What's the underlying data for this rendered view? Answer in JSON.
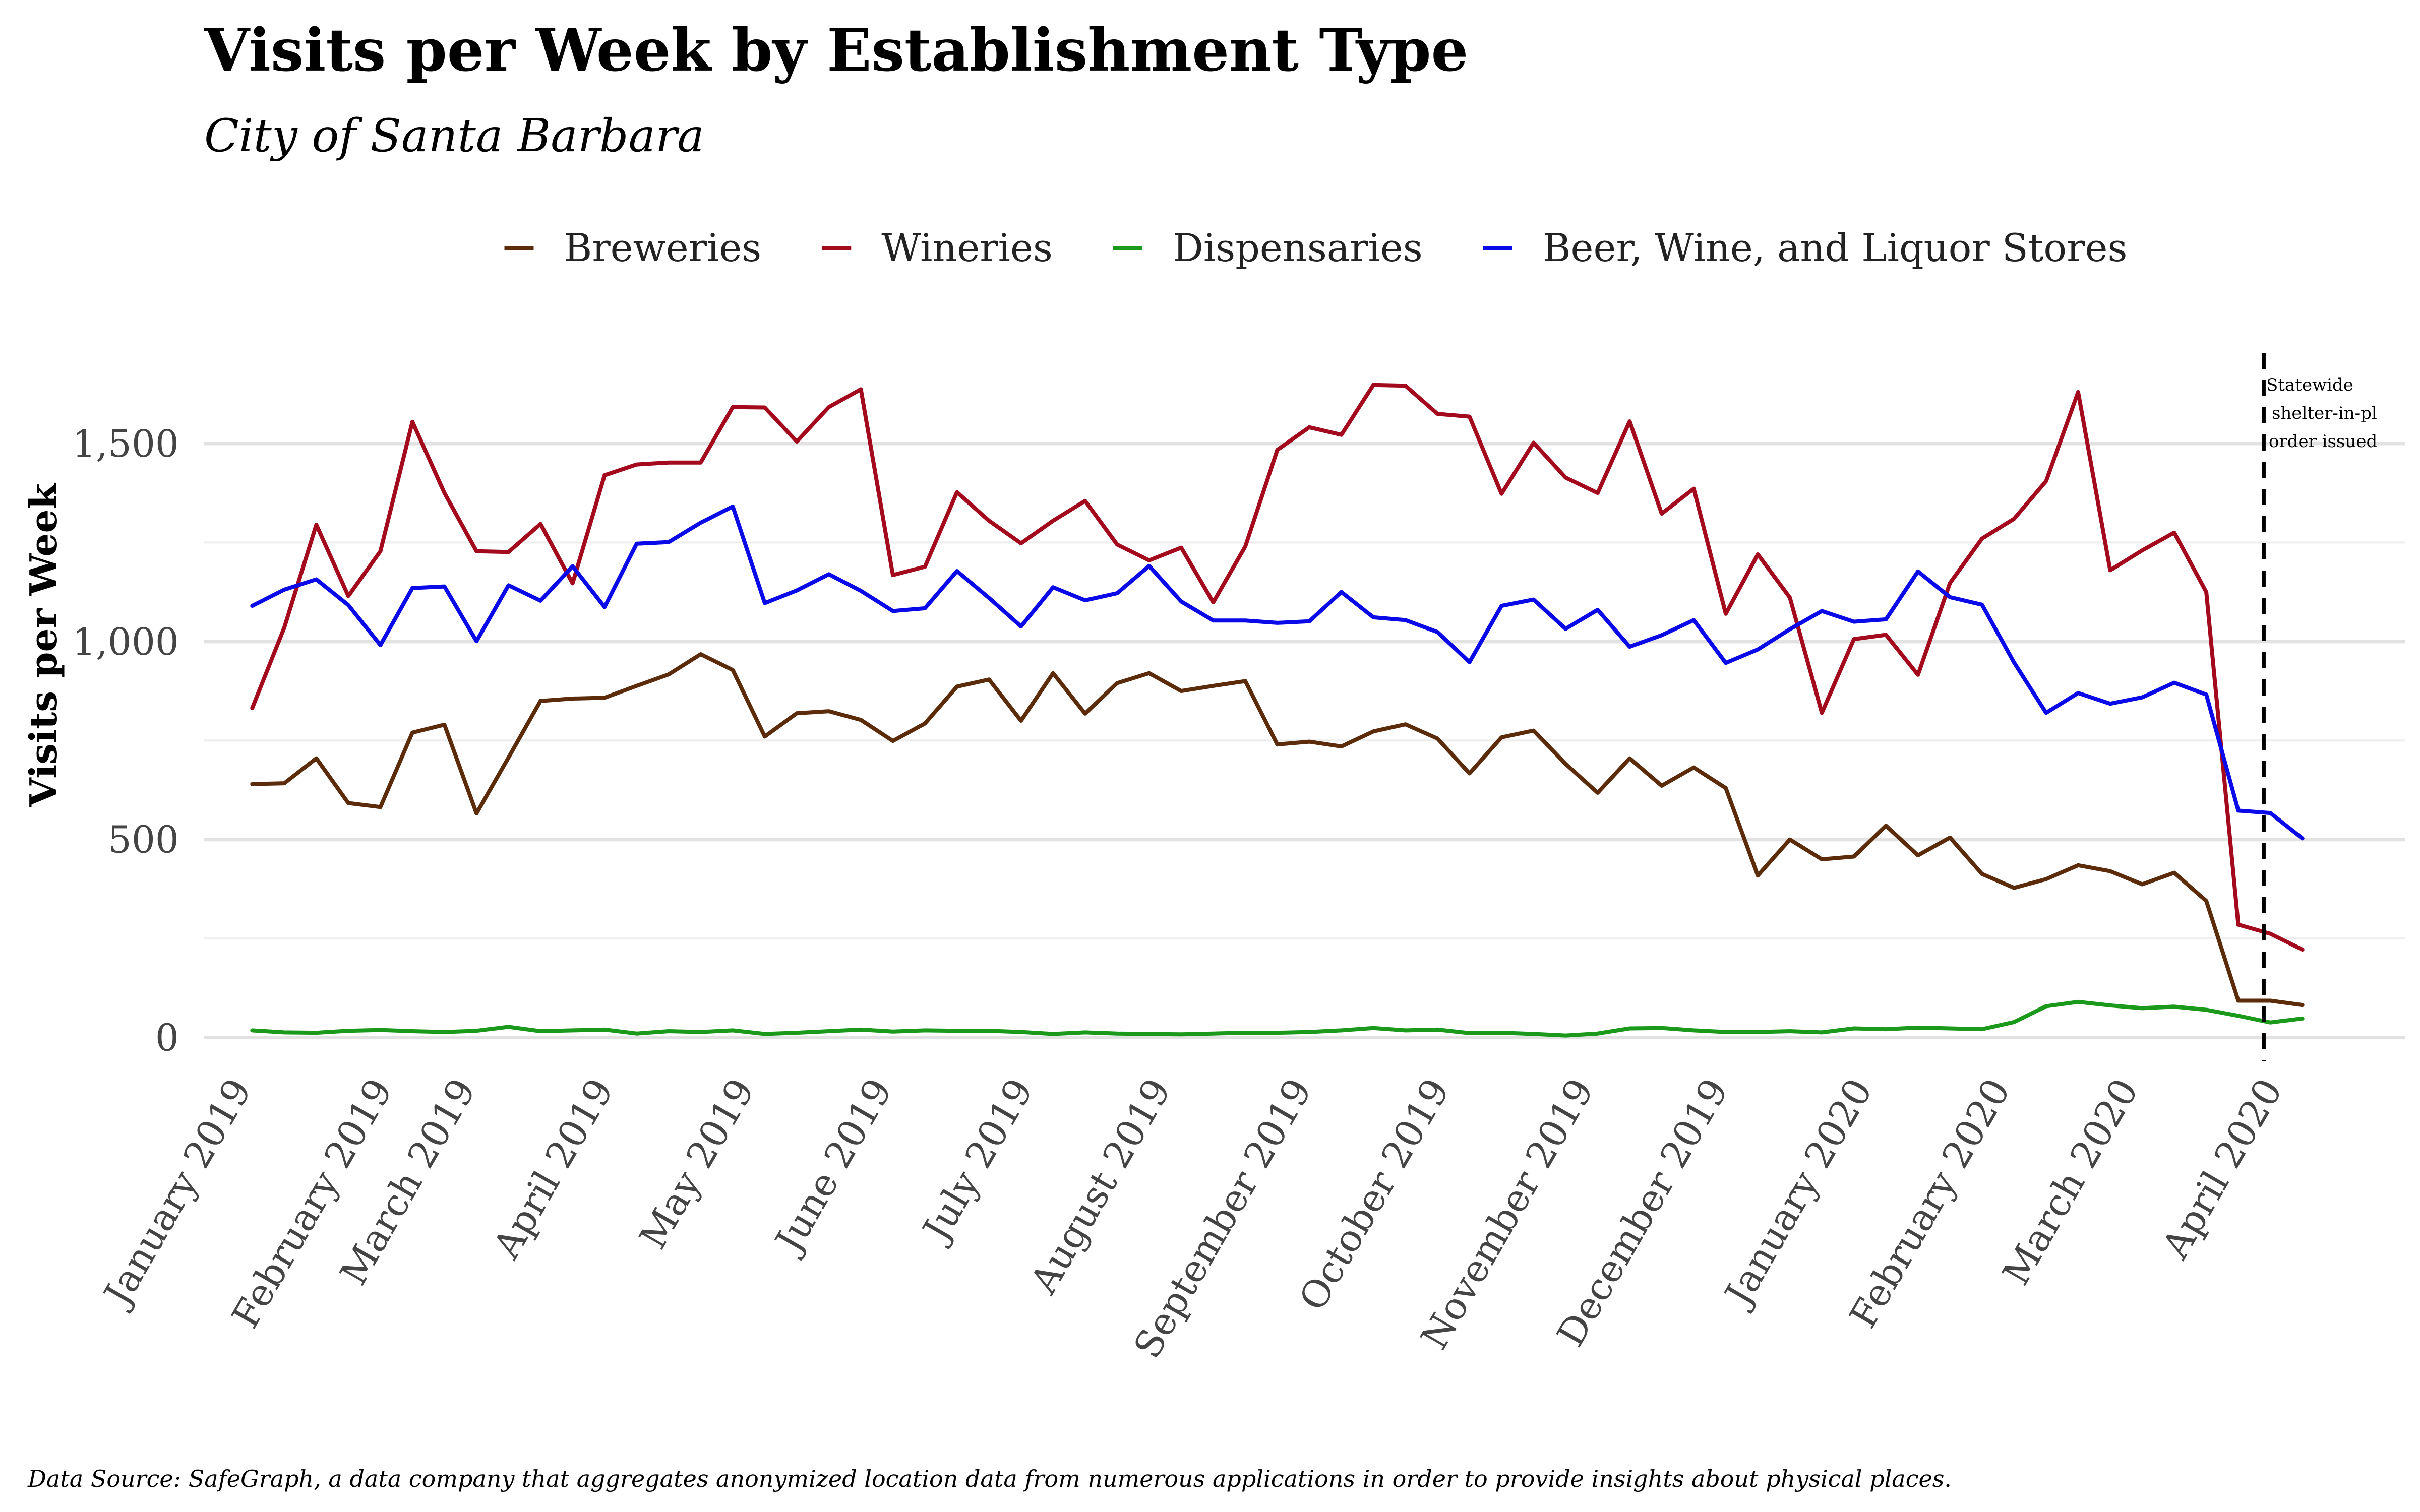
{
  "chart_data": {
    "type": "line",
    "title": "Visits per Week by Establishment Type",
    "subtitle": "City of Santa Barbara",
    "ylabel": "Visits per Week",
    "xlabel": "",
    "caption": "Data Source: SafeGraph, a data company that aggregates anonymized location data from numerous applications in order to provide insights about physical places.",
    "legend_position": "top",
    "grid": true,
    "ylim": [
      -40,
      1780
    ],
    "y_ticks": [
      {
        "value": 0,
        "label": "0"
      },
      {
        "value": 500,
        "label": "500"
      },
      {
        "value": 1000,
        "label": "1,000"
      },
      {
        "value": 1500,
        "label": "1,500"
      }
    ],
    "y_minor_ticks": [
      250,
      750,
      1250
    ],
    "x_range_weeks": [
      -1.5,
      67.2
    ],
    "x_ticks": [
      {
        "week": 0,
        "label": "January 2019"
      },
      {
        "week": 4.4,
        "label": "February 2019"
      },
      {
        "week": 7.0,
        "label": "March 2019"
      },
      {
        "week": 11.3,
        "label": "April 2019"
      },
      {
        "week": 15.7,
        "label": "May 2019"
      },
      {
        "week": 20.0,
        "label": "June 2019"
      },
      {
        "week": 24.4,
        "label": "July 2019"
      },
      {
        "week": 28.7,
        "label": "August 2019"
      },
      {
        "week": 33.1,
        "label": "September 2019"
      },
      {
        "week": 37.4,
        "label": "October 2019"
      },
      {
        "week": 41.9,
        "label": "November 2019"
      },
      {
        "week": 46.1,
        "label": "December 2019"
      },
      {
        "week": 50.6,
        "label": "January 2020"
      },
      {
        "week": 54.9,
        "label": "February 2020"
      },
      {
        "week": 58.9,
        "label": "March 2020"
      },
      {
        "week": 63.4,
        "label": "April 2020"
      }
    ],
    "annotation": {
      "week": 62.8,
      "lines": [
        "Statewide",
        "shelter-in-pl",
        "order issued"
      ]
    },
    "series": [
      {
        "name": "Breweries",
        "color": "#5c2c0a",
        "values": [
          640,
          642,
          705,
          592,
          582,
          770,
          790,
          566,
          707,
          850,
          856,
          858,
          888,
          917,
          968,
          928,
          760,
          819,
          824,
          802,
          749,
          793,
          886,
          904,
          800,
          920,
          818,
          895,
          920,
          875,
          888,
          900,
          740,
          747,
          735,
          773,
          791,
          755,
          667,
          758,
          775,
          691,
          618,
          705,
          636,
          682,
          630,
          409,
          500,
          450,
          457,
          535,
          460,
          505,
          413,
          378,
          400,
          435,
          420,
          387,
          416,
          345,
          93,
          93,
          82
        ]
      },
      {
        "name": "Wineries",
        "color": "#a30a1d",
        "values": [
          832,
          1035,
          1295,
          1115,
          1228,
          1555,
          1375,
          1228,
          1226,
          1297,
          1147,
          1420,
          1447,
          1452,
          1452,
          1592,
          1591,
          1505,
          1592,
          1637,
          1168,
          1189,
          1377,
          1305,
          1248,
          1305,
          1355,
          1245,
          1205,
          1237,
          1099,
          1240,
          1484,
          1541,
          1522,
          1648,
          1646,
          1575,
          1568,
          1373,
          1502,
          1414,
          1375,
          1556,
          1323,
          1386,
          1070,
          1220,
          1111,
          820,
          1006,
          1017,
          916,
          1148,
          1260,
          1310,
          1405,
          1630,
          1180,
          1230,
          1275,
          1125,
          285,
          262,
          222
        ]
      },
      {
        "name": "Dispensaries",
        "color": "#1a991a",
        "values": [
          18,
          13,
          12,
          17,
          19,
          16,
          14,
          17,
          27,
          16,
          18,
          20,
          10,
          16,
          14,
          18,
          9,
          12,
          16,
          20,
          15,
          18,
          17,
          17,
          14,
          9,
          13,
          10,
          9,
          8,
          10,
          12,
          12,
          14,
          18,
          24,
          18,
          20,
          11,
          12,
          9,
          5,
          10,
          23,
          24,
          18,
          14,
          14,
          16,
          13,
          23,
          21,
          25,
          23,
          21,
          39,
          79,
          90,
          81,
          74,
          78,
          70,
          55,
          38,
          48
        ]
      },
      {
        "name": "Beer, Wine, and Liquor Stores",
        "color": "#0a0ae8",
        "values": [
          1090,
          1131,
          1157,
          1092,
          991,
          1135,
          1139,
          1001,
          1142,
          1103,
          1190,
          1087,
          1247,
          1251,
          1300,
          1341,
          1097,
          1129,
          1170,
          1128,
          1077,
          1084,
          1178,
          1110,
          1038,
          1137,
          1104,
          1122,
          1191,
          1101,
          1053,
          1053,
          1047,
          1051,
          1125,
          1061,
          1054,
          1024,
          948,
          1090,
          1106,
          1032,
          1080,
          987,
          1016,
          1054,
          946,
          980,
          1031,
          1077,
          1050,
          1056,
          1177,
          1112,
          1093,
          947,
          820,
          870,
          843,
          859,
          896,
          866,
          573,
          567,
          503
        ]
      }
    ]
  }
}
